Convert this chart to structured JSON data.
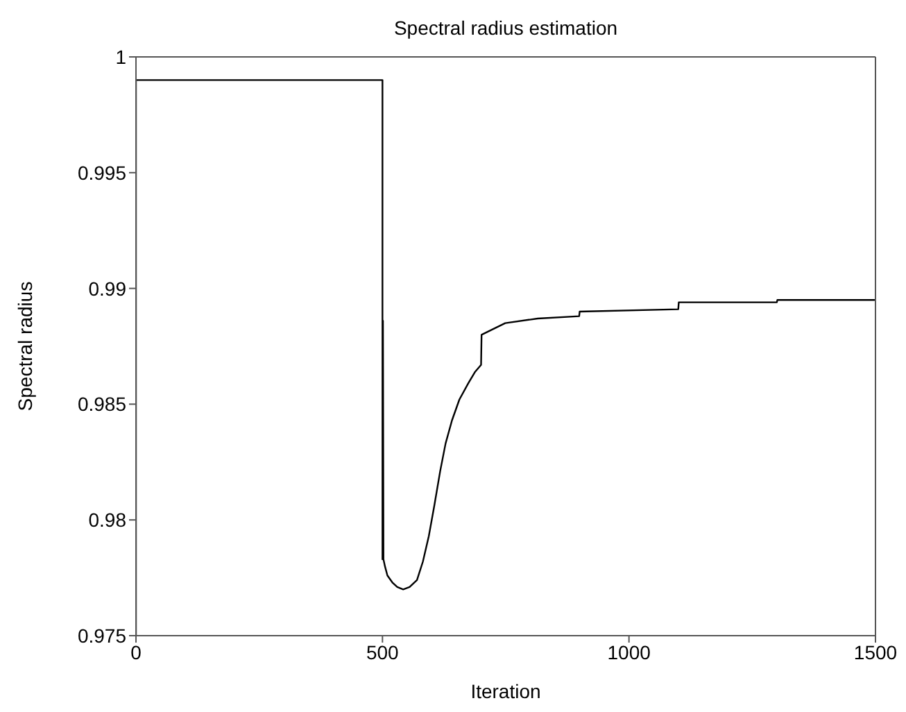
{
  "chart_data": {
    "type": "line",
    "title": "Spectral radius estimation",
    "xlabel": "Iteration",
    "ylabel": "Spectral radius",
    "x": [
      0,
      0,
      500,
      500,
      501,
      502,
      505,
      510,
      520,
      530,
      542,
      555,
      570,
      582,
      594,
      605,
      617,
      628,
      641,
      656,
      674,
      688,
      700,
      701,
      749,
      815,
      899,
      900,
      1100,
      1101,
      1300,
      1301,
      1500
    ],
    "series": [
      {
        "color": "#000000",
        "values": [
          0.975,
          0.999,
          0.999,
          0.9783,
          0.9886,
          0.9783,
          0.978,
          0.9776,
          0.9773,
          0.9771,
          0.977,
          0.9771,
          0.9774,
          0.9782,
          0.9793,
          0.9806,
          0.9821,
          0.9833,
          0.9843,
          0.9852,
          0.9859,
          0.9864,
          0.9867,
          0.988,
          0.9885,
          0.9887,
          0.9888,
          0.989,
          0.9891,
          0.9894,
          0.9894,
          0.9895,
          0.9895
        ]
      }
    ],
    "xlim": [
      0,
      1500
    ],
    "xticks": [
      0,
      500,
      1000,
      1500
    ],
    "ylim": [
      0.975,
      1
    ],
    "yticks": [
      0.975,
      0.98,
      0.985,
      0.99,
      0.995,
      1
    ],
    "grid": false,
    "legend": false,
    "marker": "none",
    "line_style": "solid"
  }
}
